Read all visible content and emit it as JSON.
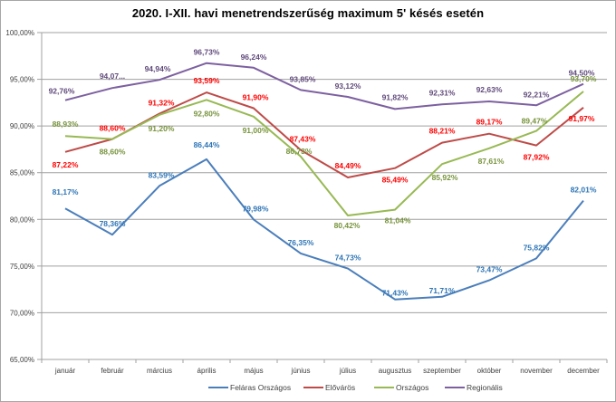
{
  "chart_data": {
    "type": "line",
    "title": "2020. I-XII. havi menetrendszerűség  maximum 5' késés esetén",
    "xlabel": "",
    "ylabel": "",
    "ylim": [
      65,
      100
    ],
    "yticks": [
      65,
      70,
      75,
      80,
      85,
      90,
      95,
      100
    ],
    "ytick_labels": [
      "65,00%",
      "70,00%",
      "75,00%",
      "80,00%",
      "85,00%",
      "90,00%",
      "95,00%",
      "100,00%"
    ],
    "grid": true,
    "legend_position": "bottom",
    "categories": [
      "január",
      "február",
      "március",
      "április",
      "május",
      "június",
      "július",
      "augusztus",
      "szeptember",
      "október",
      "november",
      "december"
    ],
    "series": [
      {
        "name": "Feláras Országos",
        "color": "#4a7ebb",
        "label_color": "#2e75b6",
        "values": [
          81.17,
          78.36,
          83.59,
          86.44,
          79.98,
          76.35,
          74.73,
          71.43,
          71.71,
          73.47,
          75.82,
          82.01
        ],
        "labels": [
          "81,17%",
          "78,36%",
          "83,59%",
          "86,44%",
          "79,98%",
          "76,35%",
          "74,73%",
          "71,43%",
          "71,71%",
          "73,47%",
          "75,82%",
          "82,01%"
        ]
      },
      {
        "name": "Elővárös",
        "color": "#be4b48",
        "label_color": "#ff0000",
        "values": [
          87.22,
          88.6,
          91.32,
          93.59,
          91.9,
          87.43,
          84.49,
          85.49,
          88.21,
          89.17,
          87.92,
          91.97
        ],
        "labels": [
          "87,22%",
          "88,60%",
          "91,32%",
          "93,59%",
          "91,90%",
          "87,43%",
          "84,49%",
          "85,49%",
          "88,21%",
          "89,17%",
          "87,92%",
          "91,97%"
        ]
      },
      {
        "name": "Országos",
        "color": "#98b954",
        "label_color": "#77933c",
        "values": [
          88.93,
          88.6,
          91.2,
          92.8,
          91.0,
          86.73,
          80.42,
          81.04,
          85.92,
          87.61,
          89.47,
          93.7
        ],
        "labels": [
          "88,93%",
          "88,60%",
          "91,20%",
          "92,80%",
          "91,00%",
          "86,73%",
          "80,42%",
          "81,04%",
          "85,92%",
          "87,61%",
          "89,47%",
          "93,70%"
        ]
      },
      {
        "name": "Regionális",
        "color": "#7d60a0",
        "label_color": "#604a7b",
        "values": [
          92.76,
          94.07,
          94.94,
          96.73,
          96.24,
          93.85,
          93.12,
          91.82,
          92.31,
          92.63,
          92.21,
          94.5
        ],
        "labels": [
          "92,76%",
          "94,07...",
          "94,94%",
          "96,73%",
          "96,24%",
          "93,85%",
          "93,12%",
          "91,82%",
          "92,31%",
          "92,63%",
          "92,21%",
          "94,50%"
        ]
      }
    ]
  }
}
